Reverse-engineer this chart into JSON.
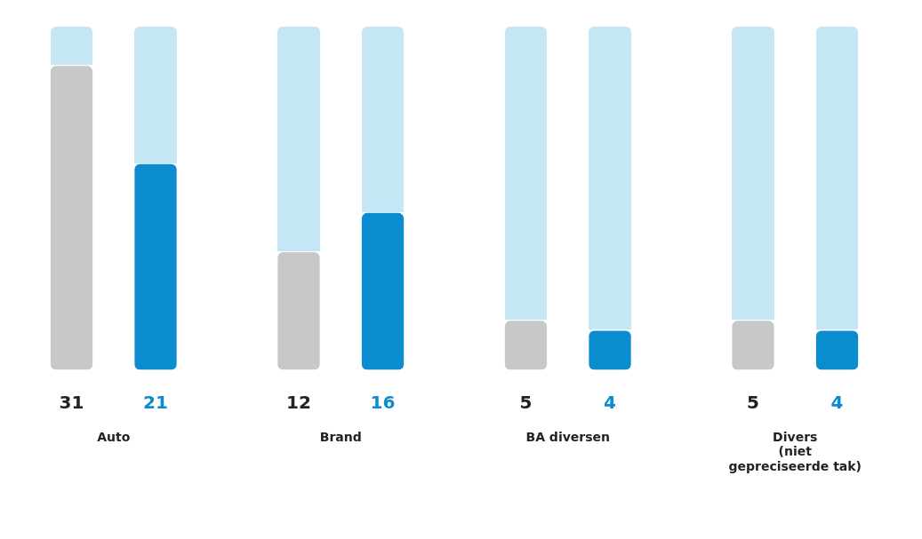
{
  "chart_data": {
    "type": "bar",
    "categories": [
      "Auto",
      "Brand",
      "BA diversen",
      "Divers (niet gepreciseerde tak)"
    ],
    "series": [
      {
        "color": "#c8c8c8",
        "values": [
          31,
          12,
          5,
          5
        ]
      },
      {
        "color": "#0a8ccf",
        "values": [
          21,
          16,
          4,
          4
        ]
      }
    ],
    "ylim": [
      0,
      35
    ],
    "tick_labels": "x",
    "grid": false,
    "legend": false,
    "data_labels": true
  }
}
